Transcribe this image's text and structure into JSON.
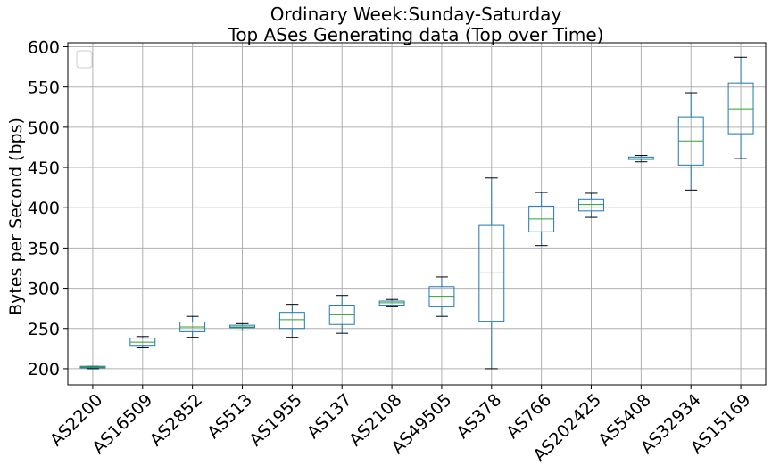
{
  "chart_data": {
    "type": "box",
    "title": "Ordinary Week:Sunday-Saturday",
    "subtitle": "Top ASes Generating data (Top over Time)",
    "xlabel": "",
    "ylabel": "Bytes per Second (bps)",
    "ylim": [
      180,
      605
    ],
    "yticks": [
      200,
      250,
      300,
      350,
      400,
      450,
      500,
      550,
      600
    ],
    "grid": true,
    "legend": "top-left (empty)",
    "colors": {
      "box": "#1f77b4",
      "median": "#2ca02c",
      "whisker_cap": "#000000",
      "grid": "#b0b0b0"
    },
    "categories": [
      "AS2200",
      "AS16509",
      "AS2852",
      "AS513",
      "AS1955",
      "AS137",
      "AS2108",
      "AS49505",
      "AS378",
      "AS766",
      "AS202425",
      "AS5408",
      "AS32934",
      "AS15169"
    ],
    "boxes": [
      {
        "label": "AS2200",
        "whislo": 200,
        "q1": 201,
        "med": 202,
        "q3": 203,
        "whishi": 203
      },
      {
        "label": "AS16509",
        "whislo": 226,
        "q1": 229,
        "med": 233,
        "q3": 238,
        "whishi": 240
      },
      {
        "label": "AS2852",
        "whislo": 239,
        "q1": 246,
        "med": 252,
        "q3": 258,
        "whishi": 265
      },
      {
        "label": "AS513",
        "whislo": 248,
        "q1": 251,
        "med": 252,
        "q3": 254,
        "whishi": 256
      },
      {
        "label": "AS1955",
        "whislo": 239,
        "q1": 250,
        "med": 261,
        "q3": 270,
        "whishi": 280
      },
      {
        "label": "AS137",
        "whislo": 244,
        "q1": 255,
        "med": 267,
        "q3": 279,
        "whishi": 291
      },
      {
        "label": "AS2108",
        "whislo": 277,
        "q1": 279,
        "med": 282,
        "q3": 284,
        "whishi": 286
      },
      {
        "label": "AS49505",
        "whislo": 265,
        "q1": 277,
        "med": 290,
        "q3": 302,
        "whishi": 314
      },
      {
        "label": "AS378",
        "whislo": 200,
        "q1": 259,
        "med": 319,
        "q3": 378,
        "whishi": 437
      },
      {
        "label": "AS766",
        "whislo": 353,
        "q1": 370,
        "med": 386,
        "q3": 402,
        "whishi": 419
      },
      {
        "label": "AS202425",
        "whislo": 388,
        "q1": 396,
        "med": 404,
        "q3": 411,
        "whishi": 418
      },
      {
        "label": "AS5408",
        "whislo": 457,
        "q1": 460,
        "med": 461,
        "q3": 463,
        "whishi": 465
      },
      {
        "label": "AS32934",
        "whislo": 422,
        "q1": 453,
        "med": 483,
        "q3": 513,
        "whishi": 543
      },
      {
        "label": "AS15169",
        "whislo": 461,
        "q1": 492,
        "med": 523,
        "q3": 555,
        "whishi": 587
      }
    ]
  }
}
